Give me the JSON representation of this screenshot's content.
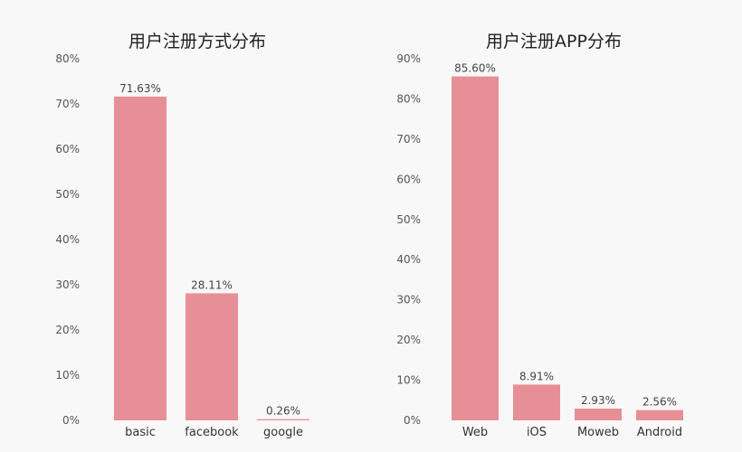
{
  "chart_data": [
    {
      "type": "bar",
      "title": "用户注册方式分布",
      "categories": [
        "basic",
        "facebook",
        "google"
      ],
      "values": [
        71.63,
        28.11,
        0.26
      ],
      "value_labels": [
        "71.63%",
        "28.11%",
        "0.26%"
      ],
      "yticks": [
        "0%",
        "10%",
        "20%",
        "30%",
        "40%",
        "50%",
        "60%",
        "70%",
        "80%"
      ],
      "ylim": [
        0,
        80
      ],
      "xlabel": "",
      "ylabel": "",
      "grid": false,
      "color": "#e78f96"
    },
    {
      "type": "bar",
      "title": "用户注册APP分布",
      "categories": [
        "Web",
        "iOS",
        "Moweb",
        "Android"
      ],
      "values": [
        85.6,
        8.91,
        2.93,
        2.56
      ],
      "value_labels": [
        "85.60%",
        "8.91%",
        "2.93%",
        "2.56%"
      ],
      "yticks": [
        "0%",
        "10%",
        "20%",
        "30%",
        "40%",
        "50%",
        "60%",
        "70%",
        "80%",
        "90%"
      ],
      "ylim": [
        0,
        90
      ],
      "xlabel": "",
      "ylabel": "",
      "grid": false,
      "color": "#e78f96"
    }
  ]
}
